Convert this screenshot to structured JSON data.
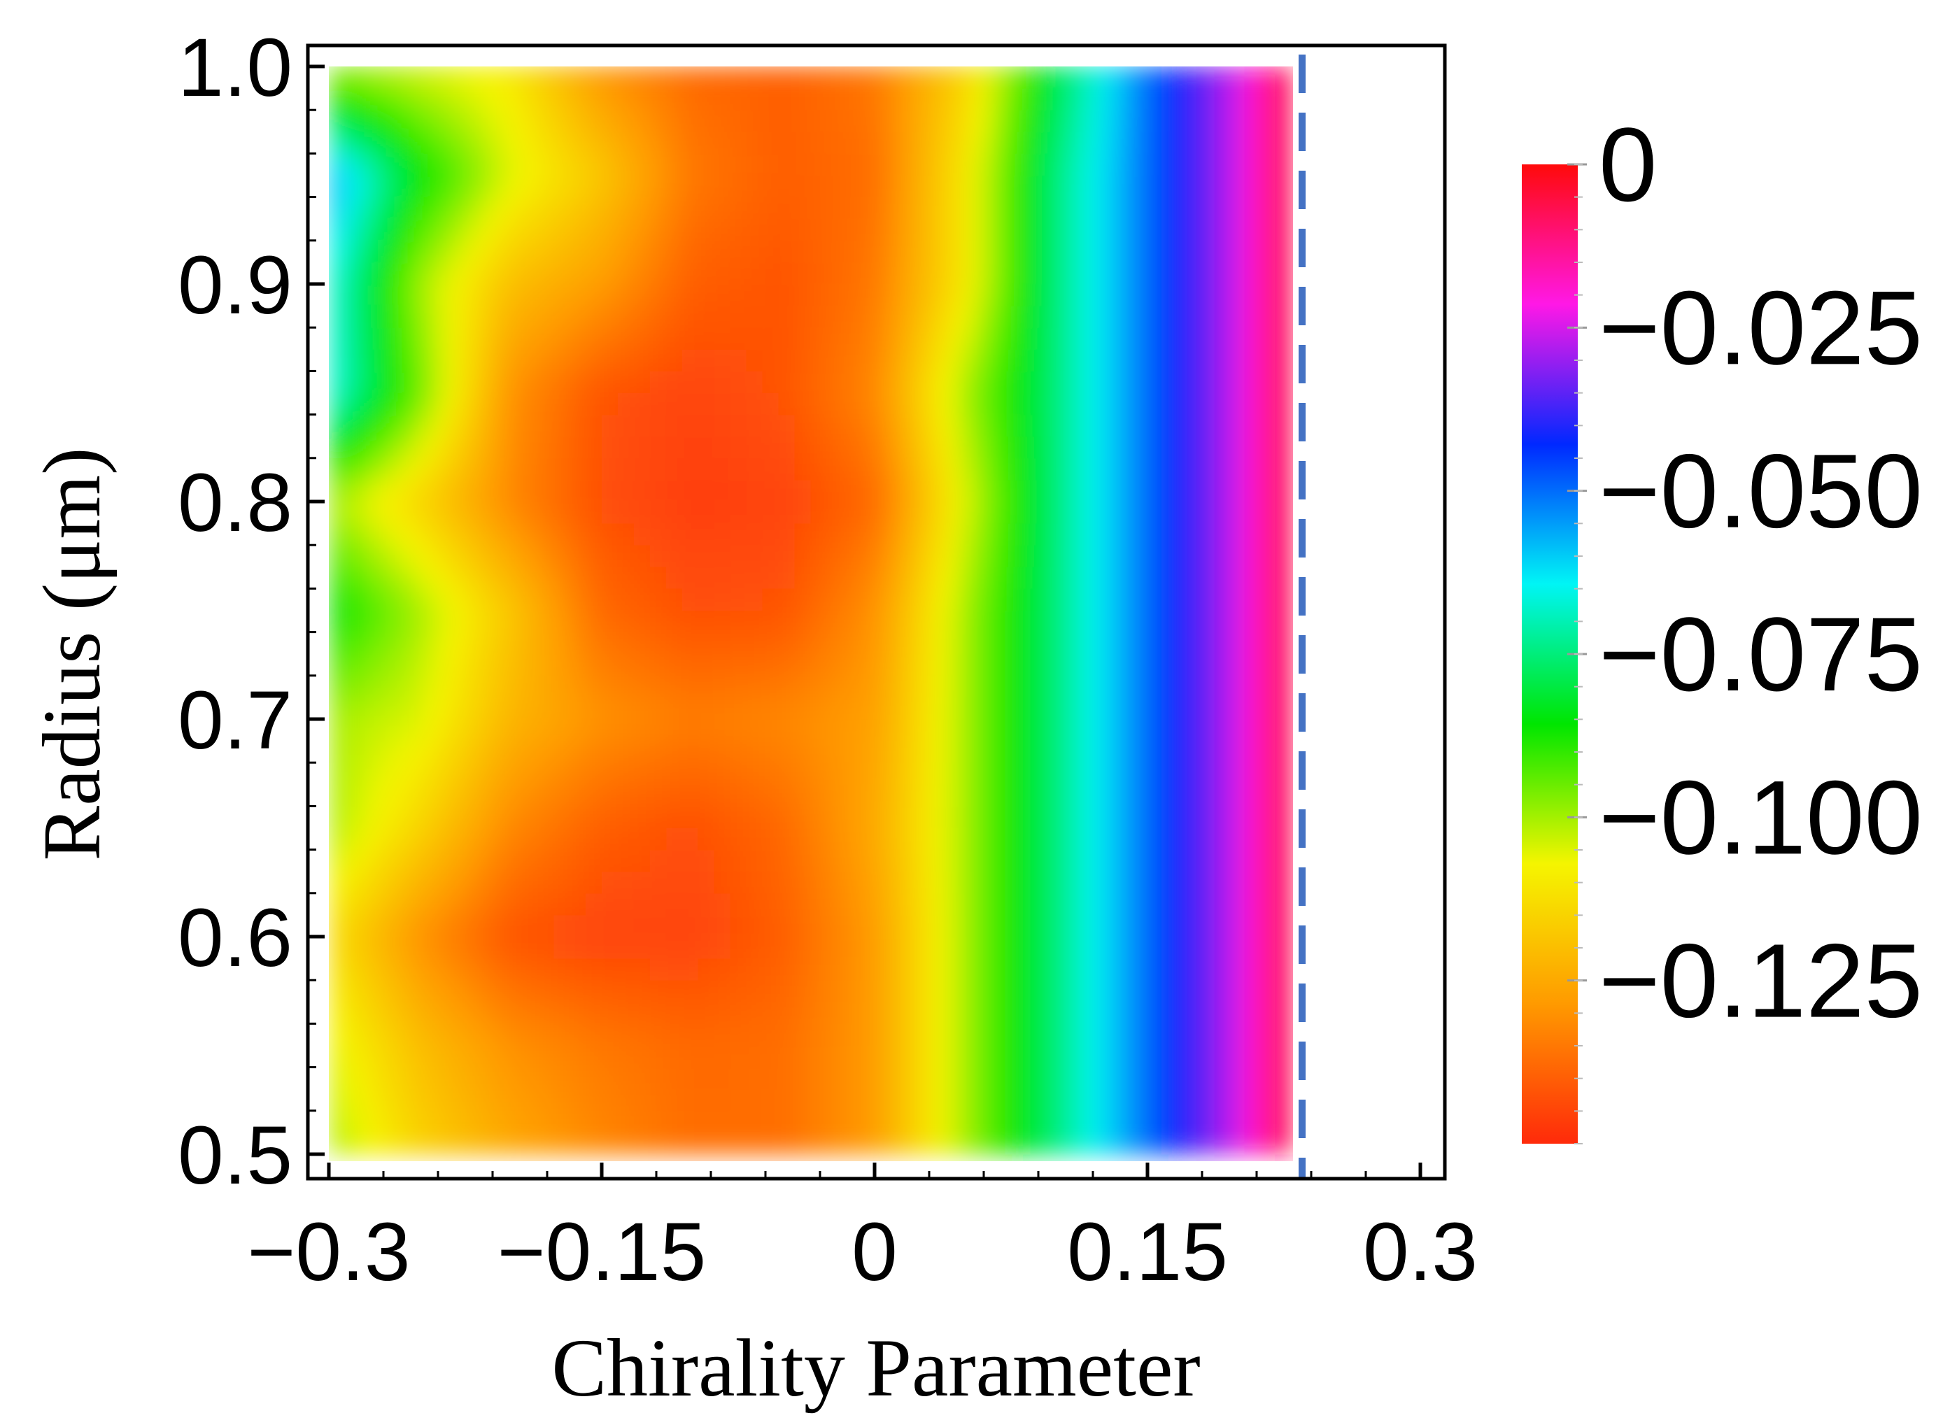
{
  "chart_data": {
    "type": "heatmap",
    "title": "",
    "xlabel": "Chirality Parameter",
    "ylabel": "Radius (μm)",
    "xlim": [
      -0.3,
      0.3
    ],
    "ylim": [
      0.5,
      1.0
    ],
    "x_ticks": [
      -0.3,
      -0.15,
      0,
      0.15,
      0.3
    ],
    "x_tick_labels": [
      "−0.3",
      "−0.15",
      "0",
      "0.15",
      "0.3"
    ],
    "y_ticks": [
      0.5,
      0.6,
      0.7,
      0.8,
      0.9,
      1.0
    ],
    "y_tick_labels": [
      "0.5",
      "0.6",
      "0.7",
      "0.8",
      "0.9",
      "1.0"
    ],
    "x": [
      -0.3,
      -0.25,
      -0.2,
      -0.15,
      -0.1,
      -0.05,
      0,
      0.05,
      0.1,
      0.15,
      0.2,
      0.23
    ],
    "y": [
      0.5,
      0.55,
      0.6,
      0.65,
      0.7,
      0.75,
      0.8,
      0.85,
      0.9,
      0.95,
      1.0
    ],
    "z": [
      [
        -0.1,
        -0.115,
        -0.125,
        -0.132,
        -0.137,
        -0.137,
        -0.128,
        -0.1,
        -0.075,
        -0.05,
        -0.025,
        -0.003
      ],
      [
        -0.105,
        -0.12,
        -0.13,
        -0.135,
        -0.138,
        -0.137,
        -0.128,
        -0.1,
        -0.075,
        -0.05,
        -0.025,
        -0.003
      ],
      [
        -0.112,
        -0.13,
        -0.142,
        -0.145,
        -0.145,
        -0.14,
        -0.128,
        -0.1,
        -0.075,
        -0.05,
        -0.025,
        -0.003
      ],
      [
        -0.1,
        -0.115,
        -0.132,
        -0.14,
        -0.143,
        -0.138,
        -0.125,
        -0.1,
        -0.075,
        -0.05,
        -0.025,
        -0.003
      ],
      [
        -0.1,
        -0.105,
        -0.122,
        -0.13,
        -0.134,
        -0.132,
        -0.127,
        -0.1,
        -0.075,
        -0.05,
        -0.025,
        -0.003
      ],
      [
        -0.085,
        -0.1,
        -0.118,
        -0.138,
        -0.143,
        -0.142,
        -0.13,
        -0.1,
        -0.075,
        -0.05,
        -0.025,
        -0.003
      ],
      [
        -0.1,
        -0.115,
        -0.132,
        -0.143,
        -0.146,
        -0.145,
        -0.138,
        -0.105,
        -0.075,
        -0.05,
        -0.025,
        -0.003
      ],
      [
        -0.065,
        -0.095,
        -0.13,
        -0.142,
        -0.145,
        -0.142,
        -0.132,
        -0.1,
        -0.075,
        -0.05,
        -0.025,
        -0.003
      ],
      [
        -0.065,
        -0.1,
        -0.12,
        -0.128,
        -0.14,
        -0.142,
        -0.135,
        -0.11,
        -0.075,
        -0.05,
        -0.025,
        -0.003
      ],
      [
        -0.055,
        -0.085,
        -0.105,
        -0.118,
        -0.135,
        -0.14,
        -0.137,
        -0.11,
        -0.075,
        -0.05,
        -0.025,
        -0.003
      ],
      [
        -0.1,
        -0.105,
        -0.11,
        -0.13,
        -0.138,
        -0.14,
        -0.135,
        -0.115,
        -0.08,
        -0.05,
        -0.025,
        -0.003
      ]
    ],
    "boundary_line": {
      "x": 0.235,
      "color": "#4472c4",
      "style": "dashed"
    },
    "colorbar": {
      "min": -0.15,
      "max": 0,
      "ticks": [
        0,
        -0.025,
        -0.05,
        -0.075,
        -0.1,
        -0.125
      ],
      "tick_labels": [
        "0",
        "−0.025",
        "−0.050",
        "−0.075",
        "−0.100",
        "−0.125"
      ],
      "colormap": [
        "#ff2a0a",
        "#ff9a00",
        "#f5f500",
        "#00e600",
        "#00f5f5",
        "#0028ff",
        "#ff18e6",
        "#ff0a0a"
      ]
    },
    "grid": false,
    "legend": "colorbar-right"
  }
}
